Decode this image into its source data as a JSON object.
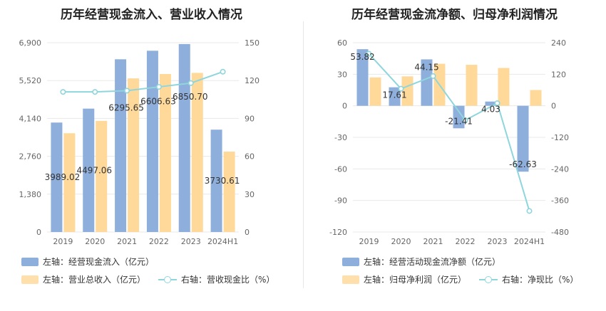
{
  "colors": {
    "bar_primary": "#8eaedc",
    "bar_secondary": "#ffd99a",
    "line": "#8fd6dc",
    "grid": "#e8e8e8",
    "tick": "#666666"
  },
  "left_panel": {
    "title": "历年经营现金流入、营业收入情况",
    "legend": {
      "bar1": "左轴：经营现金流入（亿元）",
      "bar2": "左轴：营业总收入（亿元）",
      "line": "右轴：营收现金比（%）"
    }
  },
  "right_panel": {
    "title": "历年经营现金流净额、归母净利润情况",
    "legend": {
      "bar1": "左轴：经营活动现金流净额（亿元）",
      "bar2": "左轴：归母净利润（亿元）",
      "line": "右轴：净现比（%）"
    }
  },
  "chart_data": [
    {
      "type": "bar",
      "title": "历年经营现金流入、营业收入情况",
      "categories": [
        "2019",
        "2020",
        "2021",
        "2022",
        "2023",
        "2024H1"
      ],
      "y_left": {
        "ylim": [
          0,
          6900
        ],
        "ticks": [
          "0",
          "1,380",
          "2,760",
          "4,140",
          "5,520",
          "6,900"
        ]
      },
      "y_right": {
        "ylim": [
          0,
          150
        ],
        "ticks": [
          "0",
          "30",
          "60",
          "90",
          "120",
          "150"
        ]
      },
      "series": [
        {
          "name": "左轴：经营现金流入（亿元）",
          "axis": "left",
          "kind": "bar",
          "values": [
            3989.02,
            4497.06,
            6295.65,
            6606.63,
            6850.7,
            3730.61
          ],
          "labels": [
            "3989.02",
            "4497.06",
            "6295.65",
            "6606.63",
            "6850.70",
            "3730.61"
          ]
        },
        {
          "name": "左轴：营业总收入（亿元）",
          "axis": "left",
          "kind": "bar",
          "values": [
            3600,
            4050,
            5600,
            5760,
            5800,
            2930
          ]
        },
        {
          "name": "右轴：营收现金比（%）",
          "axis": "right",
          "kind": "line",
          "values": [
            111,
            111,
            112,
            115,
            118,
            127
          ]
        }
      ]
    },
    {
      "type": "bar",
      "title": "历年经营现金流净额、归母净利润情况",
      "categories": [
        "2019",
        "2020",
        "2021",
        "2022",
        "2023",
        "2024H1"
      ],
      "y_left": {
        "ylim": [
          -120,
          60
        ],
        "ticks": [
          "-120",
          "-90",
          "-60",
          "-30",
          "0",
          "30",
          "60"
        ]
      },
      "y_right": {
        "ylim": [
          -480,
          240
        ],
        "ticks": [
          "-480",
          "-360",
          "-240",
          "-120",
          "0",
          "120",
          "240"
        ]
      },
      "series": [
        {
          "name": "左轴：经营活动现金流净额（亿元）",
          "axis": "left",
          "kind": "bar",
          "values": [
            53.82,
            17.61,
            44.15,
            -21.41,
            4.03,
            -62.63
          ],
          "labels": [
            "53.82",
            "17.61",
            "44.15",
            "-21.41",
            "4.03",
            "-62.63"
          ]
        },
        {
          "name": "左轴：归母净利润（亿元）",
          "axis": "left",
          "kind": "bar",
          "values": [
            27,
            28,
            40,
            39,
            36,
            15
          ]
        },
        {
          "name": "右轴：净现比（%）",
          "axis": "right",
          "kind": "line",
          "values": [
            198,
            65,
            113,
            -55,
            10,
            -400
          ]
        }
      ]
    }
  ]
}
